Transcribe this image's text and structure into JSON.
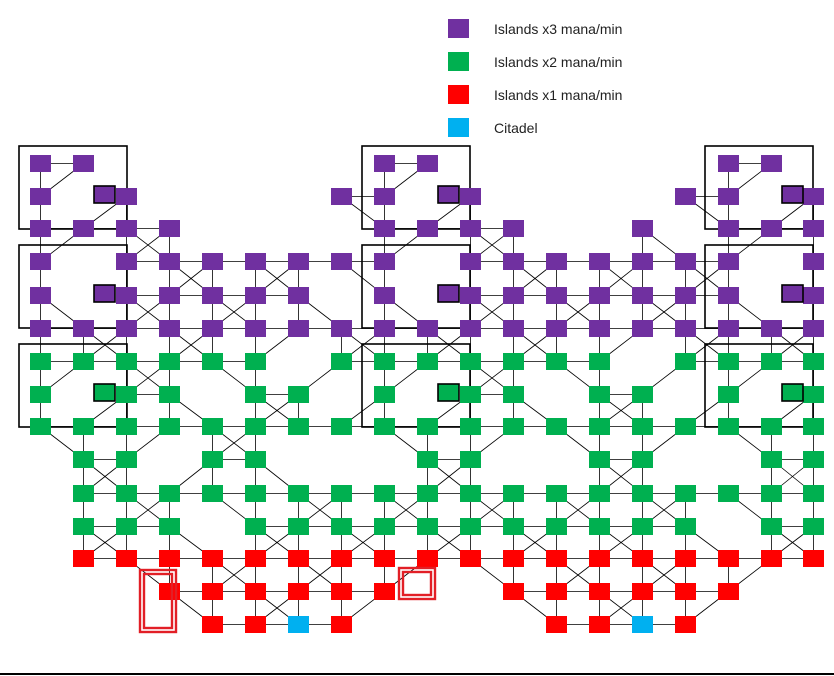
{
  "legend": {
    "items": [
      {
        "label": "Islands x3 mana/min",
        "color": "#7030a0"
      },
      {
        "label": "Islands x2 mana/min",
        "color": "#00b050"
      },
      {
        "label": "Islands x1 mana/min",
        "color": "#ff0000"
      },
      {
        "label": "Citadel",
        "color": "#00b0f0"
      }
    ]
  },
  "colors": {
    "x3": "#7030a0",
    "x2": "#00b050",
    "x1": "#ff0000",
    "citadel": "#00b0f0",
    "line": "#000000",
    "highlight": "#e21f26"
  }
}
